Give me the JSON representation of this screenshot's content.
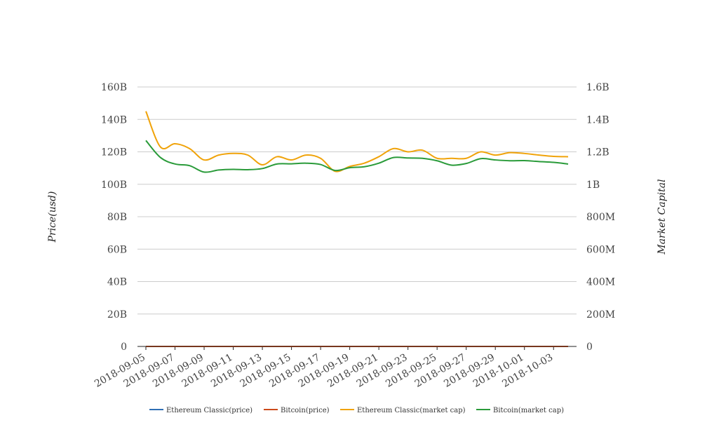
{
  "chart_data": {
    "type": "line",
    "x": [
      "2018-09-05",
      "2018-09-06",
      "2018-09-07",
      "2018-09-08",
      "2018-09-09",
      "2018-09-10",
      "2018-09-11",
      "2018-09-12",
      "2018-09-13",
      "2018-09-14",
      "2018-09-15",
      "2018-09-16",
      "2018-09-17",
      "2018-09-18",
      "2018-09-19",
      "2018-09-20",
      "2018-09-21",
      "2018-09-22",
      "2018-09-23",
      "2018-09-24",
      "2018-09-25",
      "2018-09-26",
      "2018-09-27",
      "2018-09-28",
      "2018-09-29",
      "2018-09-30",
      "2018-10-01",
      "2018-10-02",
      "2018-10-03",
      "2018-10-04"
    ],
    "x_tick_labels": [
      "2018-09-05",
      "2018-09-07",
      "2018-09-09",
      "2018-09-11",
      "2018-09-13",
      "2018-09-15",
      "2018-09-17",
      "2018-09-19",
      "2018-09-21",
      "2018-09-23",
      "2018-09-25",
      "2018-09-27",
      "2018-09-29",
      "2018-10-01",
      "2018-10-03"
    ],
    "y_left": {
      "label": "Price(usd)",
      "range": [
        0,
        160000000000
      ],
      "ticks": [
        0,
        20000000000,
        40000000000,
        60000000000,
        80000000000,
        100000000000,
        120000000000,
        140000000000,
        160000000000
      ],
      "tick_labels": [
        "0",
        "20B",
        "40B",
        "60B",
        "80B",
        "100B",
        "120B",
        "140B",
        "160B"
      ]
    },
    "y_right": {
      "label": "Market Capital",
      "range": [
        0,
        1600000000
      ],
      "ticks": [
        0,
        200000000,
        400000000,
        600000000,
        800000000,
        1000000000,
        1200000000,
        1400000000,
        1600000000
      ],
      "tick_labels": [
        "0",
        "200M",
        "400M",
        "600M",
        "800M",
        "1B",
        "1.2B",
        "1.4B",
        "1.6B"
      ]
    },
    "grid": true,
    "legend_position": "bottom",
    "series": [
      {
        "name": "Ethereum Classic(price)",
        "axis": "left",
        "color": "#2f6fb5",
        "values": [
          11.5,
          10.9,
          10.6,
          10.4,
          9.6,
          9.9,
          10.0,
          10.1,
          9.7,
          10.4,
          10.3,
          10.6,
          10.5,
          9.1,
          9.6,
          9.8,
          10.5,
          11.1,
          10.9,
          11.0,
          10.6,
          10.5,
          10.4,
          10.9,
          10.7,
          10.8,
          10.8,
          10.6,
          10.5,
          10.5
        ]
      },
      {
        "name": "Bitcoin(price)",
        "axis": "left",
        "color": "#cc4a1b",
        "values": [
          7360,
          6700,
          6500,
          6250,
          6220,
          6300,
          6290,
          6330,
          6490,
          6480,
          6520,
          6510,
          6290,
          6330,
          6390,
          6480,
          6730,
          6720,
          6700,
          6600,
          6440,
          6560,
          6640,
          6640,
          6590,
          6600,
          6590,
          6560,
          6530,
          6520
        ]
      },
      {
        "name": "Ethereum Classic(market cap)",
        "axis": "right",
        "color": "#f0a30a",
        "values": [
          1450000000,
          1230000000,
          1250000000,
          1220000000,
          1150000000,
          1180000000,
          1190000000,
          1180000000,
          1120000000,
          1170000000,
          1150000000,
          1180000000,
          1160000000,
          1080000000,
          1110000000,
          1130000000,
          1170000000,
          1220000000,
          1200000000,
          1210000000,
          1160000000,
          1160000000,
          1160000000,
          1200000000,
          1180000000,
          1195000000,
          1190000000,
          1180000000,
          1172000000,
          1170000000
        ]
      },
      {
        "name": "Bitcoin(market cap)",
        "axis": "right",
        "color": "#2a9b3a",
        "values": [
          1270000000,
          1165000000,
          1125000000,
          1115000000,
          1075000000,
          1088000000,
          1092000000,
          1090000000,
          1097000000,
          1125000000,
          1126000000,
          1130000000,
          1122000000,
          1085000000,
          1102000000,
          1108000000,
          1130000000,
          1165000000,
          1162000000,
          1160000000,
          1145000000,
          1118000000,
          1128000000,
          1158000000,
          1150000000,
          1145000000,
          1146000000,
          1140000000,
          1135000000,
          1125000000
        ]
      }
    ]
  }
}
